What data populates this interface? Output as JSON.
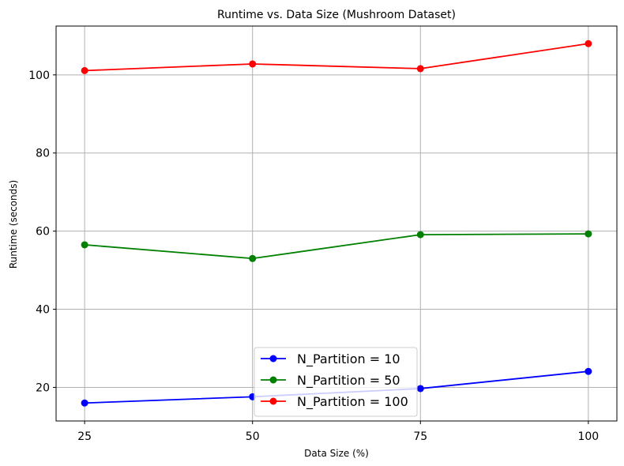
{
  "chart_data": {
    "type": "line",
    "title": "Runtime vs. Data Size (Mushroom Dataset)",
    "xlabel": "Data Size (%)",
    "ylabel": "Runtime (seconds)",
    "x": [
      25,
      50,
      75,
      100
    ],
    "xticks": [
      25,
      50,
      75,
      100
    ],
    "yticks": [
      20,
      40,
      60,
      80,
      100
    ],
    "xlim": [
      20.75,
      104.25
    ],
    "ylim": [
      11.4,
      112.5
    ],
    "grid": true,
    "legend_position": "lower-center",
    "series": [
      {
        "name": "N_Partition = 10",
        "color": "#0000ff",
        "values": [
          16.0,
          17.6,
          19.7,
          24.1
        ]
      },
      {
        "name": "N_Partition = 50",
        "color": "#008000",
        "values": [
          56.5,
          53.0,
          59.1,
          59.3
        ]
      },
      {
        "name": "N_Partition = 100",
        "color": "#ff0000",
        "values": [
          101.1,
          102.8,
          101.6,
          108.0
        ]
      }
    ]
  }
}
